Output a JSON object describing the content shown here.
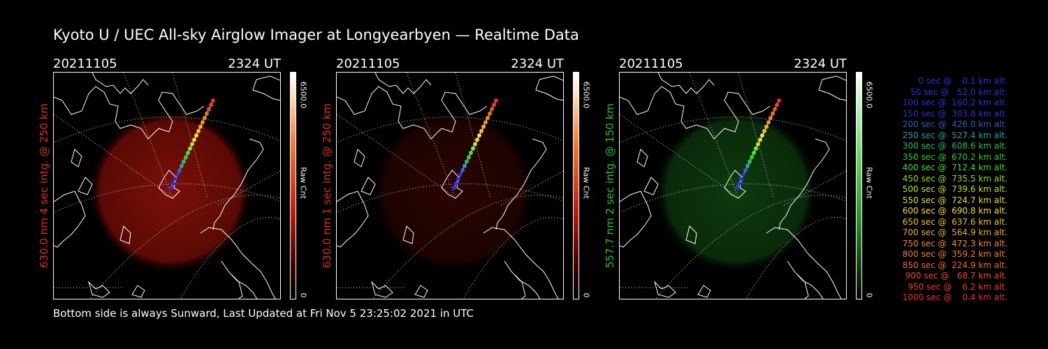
{
  "title": "Kyoto U / UEC All-sky Airglow Imager at Longyearbyen — Realtime Data",
  "footer": "Bottom side is always Sunward, Last Updated at Fri Nov  5 23:25:02 2021 in UTC",
  "colors": {
    "red_channel": "#e03020",
    "green_channel": "#30c030"
  },
  "panels": [
    {
      "date": "20211105",
      "time": "2324 UT",
      "ylabel": "630.0 nm 4 sec intg. @ 250 km",
      "color": "#e03020",
      "glow": "red-strong",
      "cbar_max": "6500.0",
      "cbar_unit": "Raw Cnt",
      "cbar_min": "0"
    },
    {
      "date": "20211105",
      "time": "2324 UT",
      "ylabel": "630.0 nm 1 sec intg. @ 250 km",
      "color": "#e03020",
      "glow": "red-faint",
      "cbar_max": "6500.0",
      "cbar_unit": "Raw Cnt",
      "cbar_min": "0"
    },
    {
      "date": "20211105",
      "time": "2324 UT",
      "ylabel": "557.7 nm 2 sec intg. @ 150 km",
      "color": "#30c030",
      "glow": "green",
      "cbar_max": "6500.0",
      "cbar_unit": "Raw Cnt",
      "cbar_min": "0"
    }
  ],
  "legend": [
    {
      "text": "   0 sec @    0.1 km alt.",
      "color": "#3030e0"
    },
    {
      "text": "  50 sec @   52.0 km alt.",
      "color": "#3030e0"
    },
    {
      "text": " 100 sec @  160.2 km alt.",
      "color": "#3030e0"
    },
    {
      "text": " 150 sec @  303.8 km alt.",
      "color": "#3030d0"
    },
    {
      "text": " 200 sec @  426.0 km alt.",
      "color": "#3060c0"
    },
    {
      "text": " 250 sec @  527.4 km alt.",
      "color": "#20a0b0"
    },
    {
      "text": " 300 sec @  608.6 km alt.",
      "color": "#20c060"
    },
    {
      "text": " 350 sec @  670.2 km alt.",
      "color": "#30d030"
    },
    {
      "text": " 400 sec @  712.4 km alt.",
      "color": "#40e040"
    },
    {
      "text": " 450 sec @  735.5 km alt.",
      "color": "#90e030"
    },
    {
      "text": " 500 sec @  739.6 km alt.",
      "color": "#c0e030"
    },
    {
      "text": " 550 sec @  724.7 km alt.",
      "color": "#e0e030"
    },
    {
      "text": " 600 sec @  690.8 km alt.",
      "color": "#f0e040"
    },
    {
      "text": " 650 sec @  637.6 km alt.",
      "color": "#f0c030"
    },
    {
      "text": " 700 sec @  564.9 km alt.",
      "color": "#f0b030"
    },
    {
      "text": " 750 sec @  472.3 km alt.",
      "color": "#f09030"
    },
    {
      "text": " 800 sec @  359.2 km alt.",
      "color": "#f08030"
    },
    {
      "text": " 850 sec @  224.9 km alt.",
      "color": "#f07020"
    },
    {
      "text": " 900 sec @   68.7 km alt.",
      "color": "#f05020"
    },
    {
      "text": " 950 sec @    6.2 km alt.",
      "color": "#f04020"
    },
    {
      "text": "1000 sec @    0.4 km alt.",
      "color": "#f03020"
    }
  ]
}
